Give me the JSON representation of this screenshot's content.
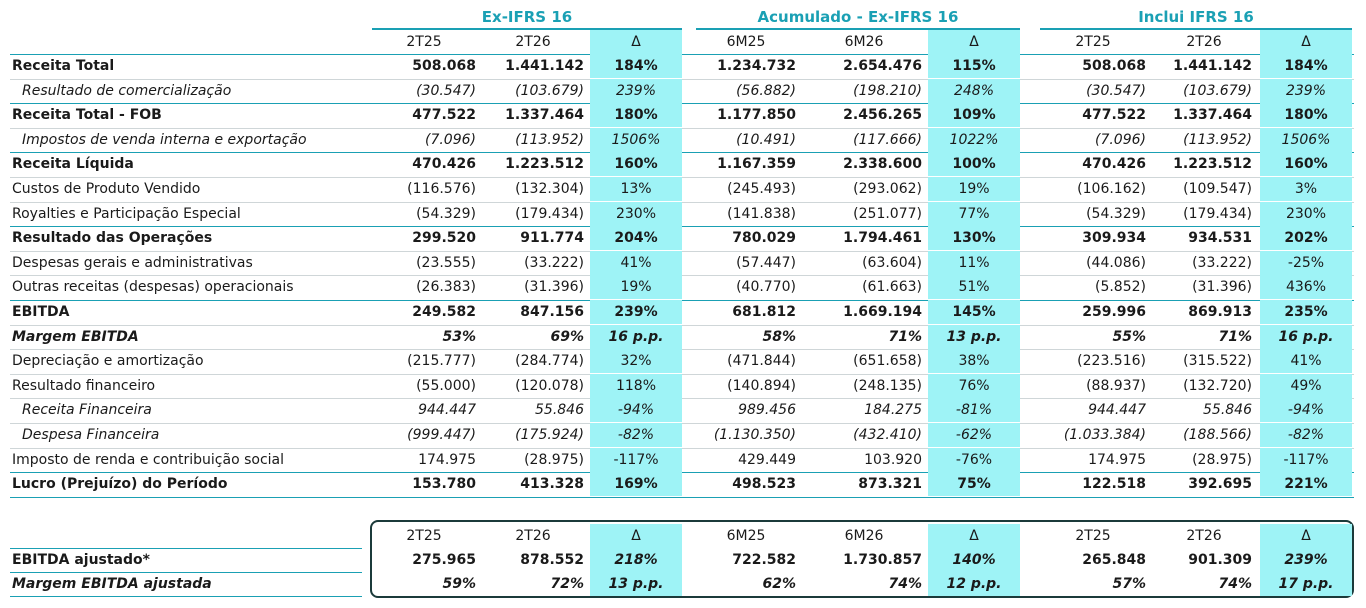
{
  "headers": {
    "group1": "Ex-IFRS 16",
    "group2": "Acumulado - Ex-IFRS 16",
    "group3": "Inclui IFRS 16"
  },
  "columns": [
    "2T25",
    "2T26",
    "Δ",
    "6M25",
    "6M26",
    "Δ",
    "2T25",
    "2T26",
    "Δ"
  ],
  "rows": [
    {
      "label": "Receita Total",
      "values": [
        "508.068",
        "1.441.142",
        "184%",
        "1.234.732",
        "2.654.476",
        "115%",
        "508.068",
        "1.441.142",
        "184%"
      ]
    },
    {
      "label": "Resultado de comercialização",
      "values": [
        "(30.547)",
        "(103.679)",
        "239%",
        "(56.882)",
        "(198.210)",
        "248%",
        "(30.547)",
        "(103.679)",
        "239%"
      ]
    },
    {
      "label": "Receita Total - FOB",
      "values": [
        "477.522",
        "1.337.464",
        "180%",
        "1.177.850",
        "2.456.265",
        "109%",
        "477.522",
        "1.337.464",
        "180%"
      ]
    },
    {
      "label": "Impostos de venda interna e exportação",
      "values": [
        "(7.096)",
        "(113.952)",
        "1506%",
        "(10.491)",
        "(117.666)",
        "1022%",
        "(7.096)",
        "(113.952)",
        "1506%"
      ]
    },
    {
      "label": "Receita Líquida",
      "values": [
        "470.426",
        "1.223.512",
        "160%",
        "1.167.359",
        "2.338.600",
        "100%",
        "470.426",
        "1.223.512",
        "160%"
      ]
    },
    {
      "label": "Custos de Produto Vendido",
      "values": [
        "(116.576)",
        "(132.304)",
        "13%",
        "(245.493)",
        "(293.062)",
        "19%",
        "(106.162)",
        "(109.547)",
        "3%"
      ]
    },
    {
      "label": "Royalties e Participação Especial",
      "values": [
        "(54.329)",
        "(179.434)",
        "230%",
        "(141.838)",
        "(251.077)",
        "77%",
        "(54.329)",
        "(179.434)",
        "230%"
      ]
    },
    {
      "label": "Resultado das Operações",
      "values": [
        "299.520",
        "911.774",
        "204%",
        "780.029",
        "1.794.461",
        "130%",
        "309.934",
        "934.531",
        "202%"
      ]
    },
    {
      "label": "Despesas gerais e administrativas",
      "values": [
        "(23.555)",
        "(33.222)",
        "41%",
        "(57.447)",
        "(63.604)",
        "11%",
        "(44.086)",
        "(33.222)",
        "-25%"
      ]
    },
    {
      "label": "Outras receitas (despesas) operacionais",
      "values": [
        "(26.383)",
        "(31.396)",
        "19%",
        "(40.770)",
        "(61.663)",
        "51%",
        "(5.852)",
        "(31.396)",
        "436%"
      ]
    },
    {
      "label": "EBITDA",
      "values": [
        "249.582",
        "847.156",
        "239%",
        "681.812",
        "1.669.194",
        "145%",
        "259.996",
        "869.913",
        "235%"
      ]
    },
    {
      "label": "Margem EBITDA",
      "values": [
        "53%",
        "69%",
        "16 p.p.",
        "58%",
        "71%",
        "13 p.p.",
        "55%",
        "71%",
        "16 p.p."
      ]
    },
    {
      "label": "Depreciação e amortização",
      "values": [
        "(215.777)",
        "(284.774)",
        "32%",
        "(471.844)",
        "(651.658)",
        "38%",
        "(223.516)",
        "(315.522)",
        "41%"
      ]
    },
    {
      "label": "Resultado financeiro",
      "values": [
        "(55.000)",
        "(120.078)",
        "118%",
        "(140.894)",
        "(248.135)",
        "76%",
        "(88.937)",
        "(132.720)",
        "49%"
      ]
    },
    {
      "label": "Receita Financeira",
      "values": [
        "944.447",
        "55.846",
        "-94%",
        "989.456",
        "184.275",
        "-81%",
        "944.447",
        "55.846",
        "-94%"
      ]
    },
    {
      "label": "Despesa Financeira",
      "values": [
        "(999.447)",
        "(175.924)",
        "-82%",
        "(1.130.350)",
        "(432.410)",
        "-62%",
        "(1.033.384)",
        "(188.566)",
        "-82%"
      ]
    },
    {
      "label": "Imposto de renda e contribuição social",
      "values": [
        "174.975",
        "(28.975)",
        "-117%",
        "429.449",
        "103.920",
        "-76%",
        "174.975",
        "(28.975)",
        "-117%"
      ]
    },
    {
      "label": "Lucro (Prejuízo) do Período",
      "values": [
        "153.780",
        "413.328",
        "169%",
        "498.523",
        "873.321",
        "75%",
        "122.518",
        "392.695",
        "221%"
      ]
    }
  ],
  "adjusted": {
    "columns": [
      "2T25",
      "2T26",
      "Δ",
      "6M25",
      "6M26",
      "Δ",
      "2T25",
      "2T26",
      "Δ"
    ],
    "rows": [
      {
        "label": "EBITDA ajustado*",
        "values": [
          "275.965",
          "878.552",
          "218%",
          "722.582",
          "1.730.857",
          "140%",
          "265.848",
          "901.309",
          "239%"
        ]
      },
      {
        "label": "Margem EBITDA ajustada",
        "values": [
          "59%",
          "72%",
          "13 p.p.",
          "62%",
          "74%",
          "12 p.p.",
          "57%",
          "74%",
          "17 p.p."
        ]
      }
    ]
  },
  "colors": {
    "accent": "#1aa0b4",
    "highlight": "#9ef3f6",
    "box_border": "#1b3a3a"
  }
}
